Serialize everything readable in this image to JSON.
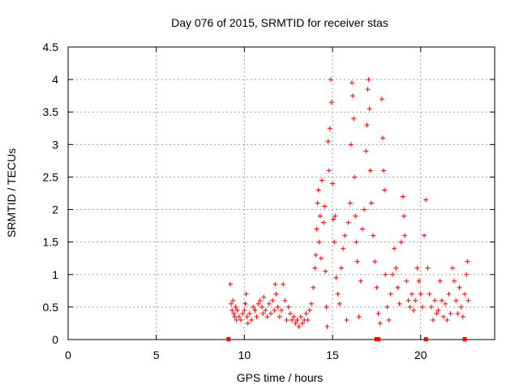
{
  "chart_data": {
    "type": "scatter",
    "title": "Day 076 of 2015, SRMTID for receiver stas",
    "xlabel": "GPS time / hours",
    "ylabel": "SRMTID / TECUs",
    "xlim": [
      0,
      24.2
    ],
    "ylim": [
      0,
      4.5
    ],
    "xticks": [
      0,
      5,
      10,
      15,
      20
    ],
    "xtick_labels": [
      "0",
      "5",
      "10",
      "15",
      "20"
    ],
    "yticks": [
      0,
      0.5,
      1,
      1.5,
      2,
      2.5,
      3,
      3.5,
      4,
      4.5
    ],
    "ytick_labels": [
      "0",
      "0.5",
      "1",
      "1.5",
      "2",
      "2.5",
      "3",
      "3.5",
      "4",
      "4.5"
    ],
    "grid": true,
    "marker": "+",
    "color": "#ff0000",
    "series": [
      {
        "name": "SRMTID",
        "points": [
          [
            9.2,
            0.85
          ],
          [
            9.25,
            0.55
          ],
          [
            9.3,
            0.45
          ],
          [
            9.35,
            0.6
          ],
          [
            9.4,
            0.4
          ],
          [
            9.45,
            0.35
          ],
          [
            9.5,
            0.5
          ],
          [
            9.55,
            0.3
          ],
          [
            9.6,
            0.45
          ],
          [
            9.7,
            0.35
          ],
          [
            9.8,
            0.3
          ],
          [
            9.9,
            0.4
          ],
          [
            10.0,
            0.45
          ],
          [
            10.05,
            0.55
          ],
          [
            10.1,
            0.7
          ],
          [
            10.15,
            0.35
          ],
          [
            10.2,
            0.25
          ],
          [
            10.3,
            0.4
          ],
          [
            10.4,
            0.3
          ],
          [
            10.5,
            0.5
          ],
          [
            10.6,
            0.45
          ],
          [
            10.7,
            0.35
          ],
          [
            10.8,
            0.55
          ],
          [
            10.9,
            0.6
          ],
          [
            11.0,
            0.5
          ],
          [
            11.05,
            0.4
          ],
          [
            11.1,
            0.65
          ],
          [
            11.2,
            0.45
          ],
          [
            11.3,
            0.35
          ],
          [
            11.4,
            0.55
          ],
          [
            11.5,
            0.4
          ],
          [
            11.6,
            0.6
          ],
          [
            11.7,
            0.45
          ],
          [
            11.75,
            0.85
          ],
          [
            11.8,
            0.7
          ],
          [
            11.9,
            0.5
          ],
          [
            12.0,
            0.35
          ],
          [
            12.1,
            0.45
          ],
          [
            12.2,
            0.85
          ],
          [
            12.3,
            0.6
          ],
          [
            12.4,
            0.3
          ],
          [
            12.5,
            0.5
          ],
          [
            12.6,
            0.4
          ],
          [
            12.7,
            0.3
          ],
          [
            12.8,
            0.35
          ],
          [
            12.9,
            0.25
          ],
          [
            13.0,
            0.3
          ],
          [
            13.1,
            0.2
          ],
          [
            13.2,
            0.35
          ],
          [
            13.3,
            0.25
          ],
          [
            13.4,
            0.3
          ],
          [
            13.5,
            0.4
          ],
          [
            13.6,
            0.3
          ],
          [
            13.7,
            0.45
          ],
          [
            13.8,
            0.55
          ],
          [
            13.9,
            0.8
          ],
          [
            14.0,
            1.1
          ],
          [
            14.05,
            1.3
          ],
          [
            14.1,
            1.7
          ],
          [
            14.15,
            2.1
          ],
          [
            14.2,
            2.3
          ],
          [
            14.25,
            1.5
          ],
          [
            14.3,
            1.9
          ],
          [
            14.35,
            1.25
          ],
          [
            14.4,
            2.45
          ],
          [
            14.5,
            1.8
          ],
          [
            14.55,
            2.05
          ],
          [
            14.6,
            1.05
          ],
          [
            14.65,
            0.5
          ],
          [
            14.7,
            0.2
          ],
          [
            14.75,
            3.05
          ],
          [
            14.8,
            2.6
          ],
          [
            14.85,
            3.25
          ],
          [
            14.9,
            4.0
          ],
          [
            14.95,
            3.65
          ],
          [
            15.0,
            2.4
          ],
          [
            15.05,
            1.85
          ],
          [
            15.1,
            1.5
          ],
          [
            15.15,
            1.9
          ],
          [
            15.2,
            0.95
          ],
          [
            15.3,
            0.7
          ],
          [
            15.4,
            0.55
          ],
          [
            15.5,
            1.1
          ],
          [
            15.6,
            1.4
          ],
          [
            15.7,
            1.6
          ],
          [
            15.8,
            0.3
          ],
          [
            15.9,
            1.8
          ],
          [
            16.0,
            2.1
          ],
          [
            16.05,
            3.0
          ],
          [
            16.1,
            3.95
          ],
          [
            16.15,
            3.75
          ],
          [
            16.2,
            3.4
          ],
          [
            16.25,
            2.5
          ],
          [
            16.3,
            1.9
          ],
          [
            16.35,
            1.5
          ],
          [
            16.4,
            1.2
          ],
          [
            16.5,
            0.35
          ],
          [
            16.6,
            0.9
          ],
          [
            16.7,
            1.7
          ],
          [
            16.8,
            2.0
          ],
          [
            16.9,
            2.9
          ],
          [
            16.95,
            3.3
          ],
          [
            17.0,
            3.85
          ],
          [
            17.05,
            4.0
          ],
          [
            17.1,
            3.55
          ],
          [
            17.15,
            2.6
          ],
          [
            17.2,
            2.1
          ],
          [
            17.3,
            1.6
          ],
          [
            17.4,
            1.2
          ],
          [
            17.5,
            0.8
          ],
          [
            17.6,
            0.4
          ],
          [
            17.7,
            0.25
          ],
          [
            17.8,
            3.7
          ],
          [
            17.85,
            3.1
          ],
          [
            17.9,
            2.6
          ],
          [
            17.95,
            2.3
          ],
          [
            18.0,
            1.0
          ],
          [
            18.1,
            0.5
          ],
          [
            18.2,
            0.3
          ],
          [
            18.3,
            0.7
          ],
          [
            18.4,
            1.0
          ],
          [
            18.5,
            1.4
          ],
          [
            18.6,
            1.1
          ],
          [
            18.7,
            0.8
          ],
          [
            18.8,
            0.55
          ],
          [
            18.9,
            1.5
          ],
          [
            19.0,
            2.2
          ],
          [
            19.05,
            1.9
          ],
          [
            19.1,
            1.6
          ],
          [
            19.2,
            0.9
          ],
          [
            19.3,
            0.6
          ],
          [
            19.4,
            0.5
          ],
          [
            19.5,
            0.7
          ],
          [
            19.6,
            0.45
          ],
          [
            19.7,
            0.6
          ],
          [
            19.8,
            1.1
          ],
          [
            19.9,
            0.9
          ],
          [
            20.0,
            0.7
          ],
          [
            20.1,
            0.5
          ],
          [
            20.2,
            1.6
          ],
          [
            20.3,
            2.15
          ],
          [
            20.4,
            1.1
          ],
          [
            20.5,
            0.7
          ],
          [
            20.6,
            0.5
          ],
          [
            20.7,
            0.3
          ],
          [
            20.8,
            0.6
          ],
          [
            20.9,
            0.4
          ],
          [
            21.0,
            0.45
          ],
          [
            21.1,
            0.9
          ],
          [
            21.2,
            0.6
          ],
          [
            21.3,
            0.35
          ],
          [
            21.4,
            0.55
          ],
          [
            21.5,
            0.3
          ],
          [
            21.6,
            0.7
          ],
          [
            21.7,
            0.4
          ],
          [
            21.8,
            1.1
          ],
          [
            21.9,
            0.9
          ],
          [
            22.0,
            0.6
          ],
          [
            22.1,
            0.4
          ],
          [
            22.2,
            0.8
          ],
          [
            22.3,
            0.5
          ],
          [
            22.4,
            0.35
          ],
          [
            22.5,
            0.7
          ],
          [
            22.6,
            1.0
          ],
          [
            22.65,
            1.2
          ],
          [
            22.7,
            0.6
          ]
        ]
      }
    ],
    "zero_markers_x": [
      9.1,
      17.5,
      17.6,
      20.3,
      22.5
    ]
  }
}
